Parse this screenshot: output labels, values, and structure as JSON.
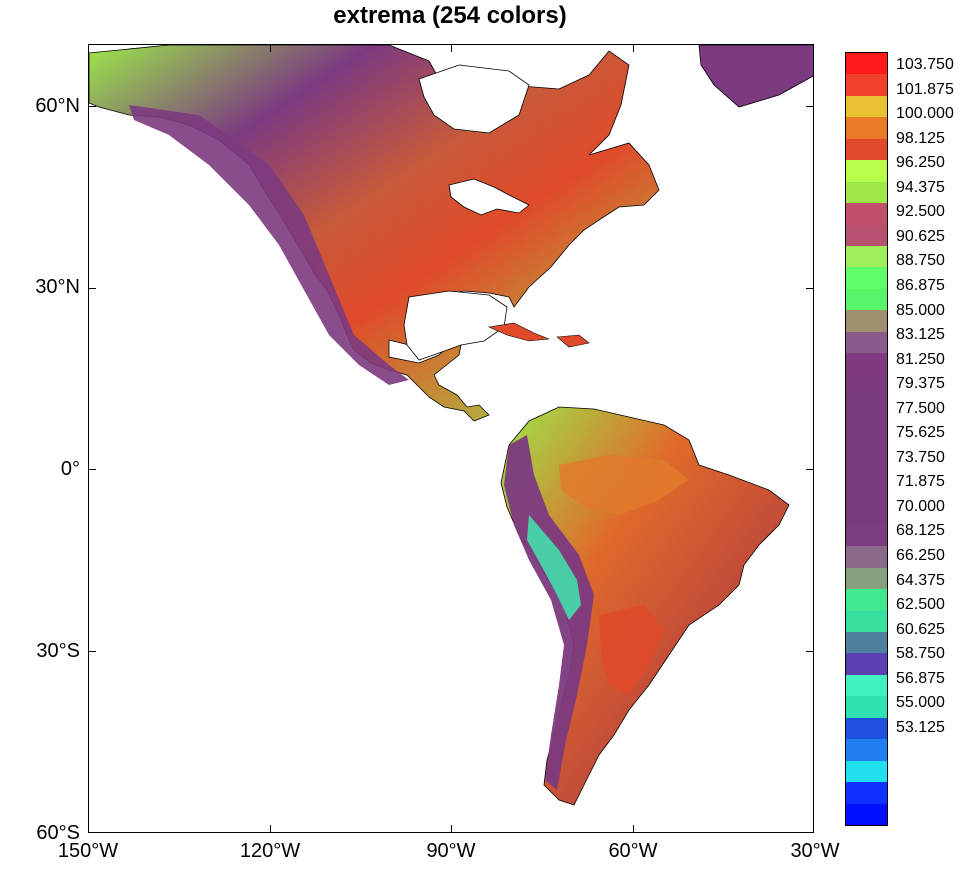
{
  "title": "extrema (254 colors)",
  "map": {
    "projection": "cylindrical-equidistant",
    "lon_range": [
      -150,
      -30
    ],
    "lat_range": [
      -60,
      70
    ],
    "lat_ticks": [
      {
        "value": 60,
        "label": "60°N"
      },
      {
        "value": 30,
        "label": "30°N"
      },
      {
        "value": 0,
        "label": "0°"
      },
      {
        "value": -30,
        "label": "30°S"
      },
      {
        "value": -60,
        "label": "60°S"
      }
    ],
    "lon_ticks": [
      {
        "value": -150,
        "label": "150°W"
      },
      {
        "value": -120,
        "label": "120°W"
      },
      {
        "value": -90,
        "label": "90°W"
      },
      {
        "value": -60,
        "label": "60°W"
      },
      {
        "value": -30,
        "label": "30°W"
      }
    ],
    "ocean_color": "#ffffff",
    "coastline_color": "#000000"
  },
  "colorbar": {
    "min": 52.19,
    "max": 104.69,
    "labels": [
      "103.750",
      "101.875",
      "100.000",
      "98.125",
      "96.250",
      "94.375",
      "92.500",
      "90.625",
      "88.750",
      "86.875",
      "85.000",
      "83.125",
      "81.250",
      "79.375",
      "77.500",
      "75.625",
      "73.750",
      "71.875",
      "70.000",
      "68.125",
      "66.250",
      "64.375",
      "62.500",
      "60.625",
      "58.750",
      "56.875",
      "55.000",
      "53.125"
    ],
    "colors": [
      "#ff1a1a",
      "#f2402a",
      "#e8c230",
      "#e87a2a",
      "#e04a2a",
      "#b8ff4a",
      "#9fe84a",
      "#c0506a",
      "#b85070",
      "#9fef5a",
      "#60ff6a",
      "#58f46a",
      "#a09070",
      "#8a5a8a",
      "#7f3a7f",
      "#7c3a80",
      "#7a3a80",
      "#7a3a80",
      "#7a3a80",
      "#7a3a80",
      "#7a3a80",
      "#7a3a80",
      "#7c3c80",
      "#8a6a88",
      "#88a080",
      "#40e890",
      "#38e0a0",
      "#5080a0",
      "#5a40b0",
      "#40f0c0",
      "#30e0b0",
      "#2050e0",
      "#2080f0",
      "#20e0f0",
      "#1030ff",
      "#0010ff"
    ]
  }
}
